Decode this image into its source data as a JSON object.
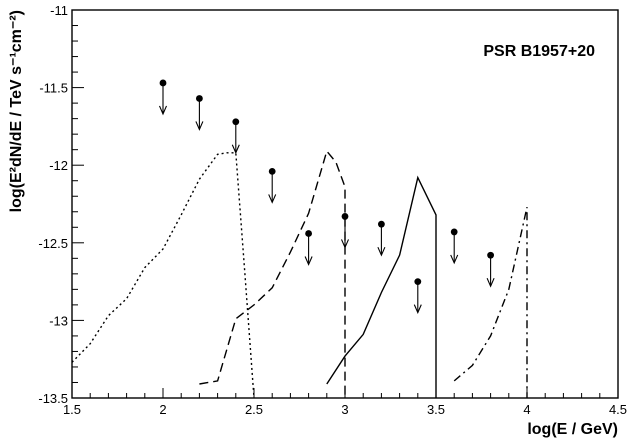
{
  "chart_data": {
    "type": "line",
    "annotation": "PSR B1957+20",
    "xlabel": "log(E / GeV)",
    "ylabel": "log(E²dN/dE / TeV s⁻¹cm⁻²)",
    "xlim": [
      1.5,
      4.5
    ],
    "ylim": [
      -13.5,
      -11
    ],
    "x_ticks": [
      "1.5",
      "2",
      "2.5",
      "3",
      "3.5",
      "4",
      "4.5"
    ],
    "y_ticks": [
      "-11",
      "-11.5",
      "-12",
      "-12.5",
      "-13",
      "-13.5"
    ],
    "grid": false,
    "upper_limits": {
      "x": [
        2.0,
        2.2,
        2.4,
        2.6,
        2.8,
        3.0,
        3.2,
        3.4,
        3.6,
        3.8
      ],
      "y": [
        -11.47,
        -11.57,
        -11.72,
        -12.04,
        -12.44,
        -12.33,
        -12.38,
        -12.75,
        -12.43,
        -12.58
      ]
    },
    "series": [
      {
        "style": "dotted",
        "x": [
          1.5,
          1.6,
          1.7,
          1.8,
          1.9,
          2.0,
          2.1,
          2.2,
          2.3,
          2.35,
          2.4,
          2.45,
          2.5
        ],
        "y": [
          -13.27,
          -13.15,
          -12.97,
          -12.86,
          -12.66,
          -12.54,
          -12.32,
          -12.09,
          -11.93,
          -11.92,
          -11.92,
          -12.7,
          -13.5
        ]
      },
      {
        "style": "dashed",
        "x": [
          2.2,
          2.3,
          2.4,
          2.5,
          2.6,
          2.7,
          2.8,
          2.9,
          2.95,
          3.0,
          3.0
        ],
        "y": [
          -13.41,
          -13.39,
          -12.99,
          -12.9,
          -12.79,
          -12.56,
          -12.31,
          -11.91,
          -11.98,
          -12.14,
          -13.5
        ]
      },
      {
        "style": "solid",
        "x": [
          2.9,
          3.0,
          3.1,
          3.2,
          3.3,
          3.4,
          3.5,
          3.5
        ],
        "y": [
          -13.41,
          -13.23,
          -13.09,
          -12.82,
          -12.58,
          -12.08,
          -12.32,
          -13.5
        ]
      },
      {
        "style": "dash-dot",
        "x": [
          3.6,
          3.7,
          3.8,
          3.9,
          4.0,
          4.0
        ],
        "y": [
          -13.39,
          -13.29,
          -13.1,
          -12.8,
          -12.27,
          -13.5
        ]
      }
    ]
  }
}
